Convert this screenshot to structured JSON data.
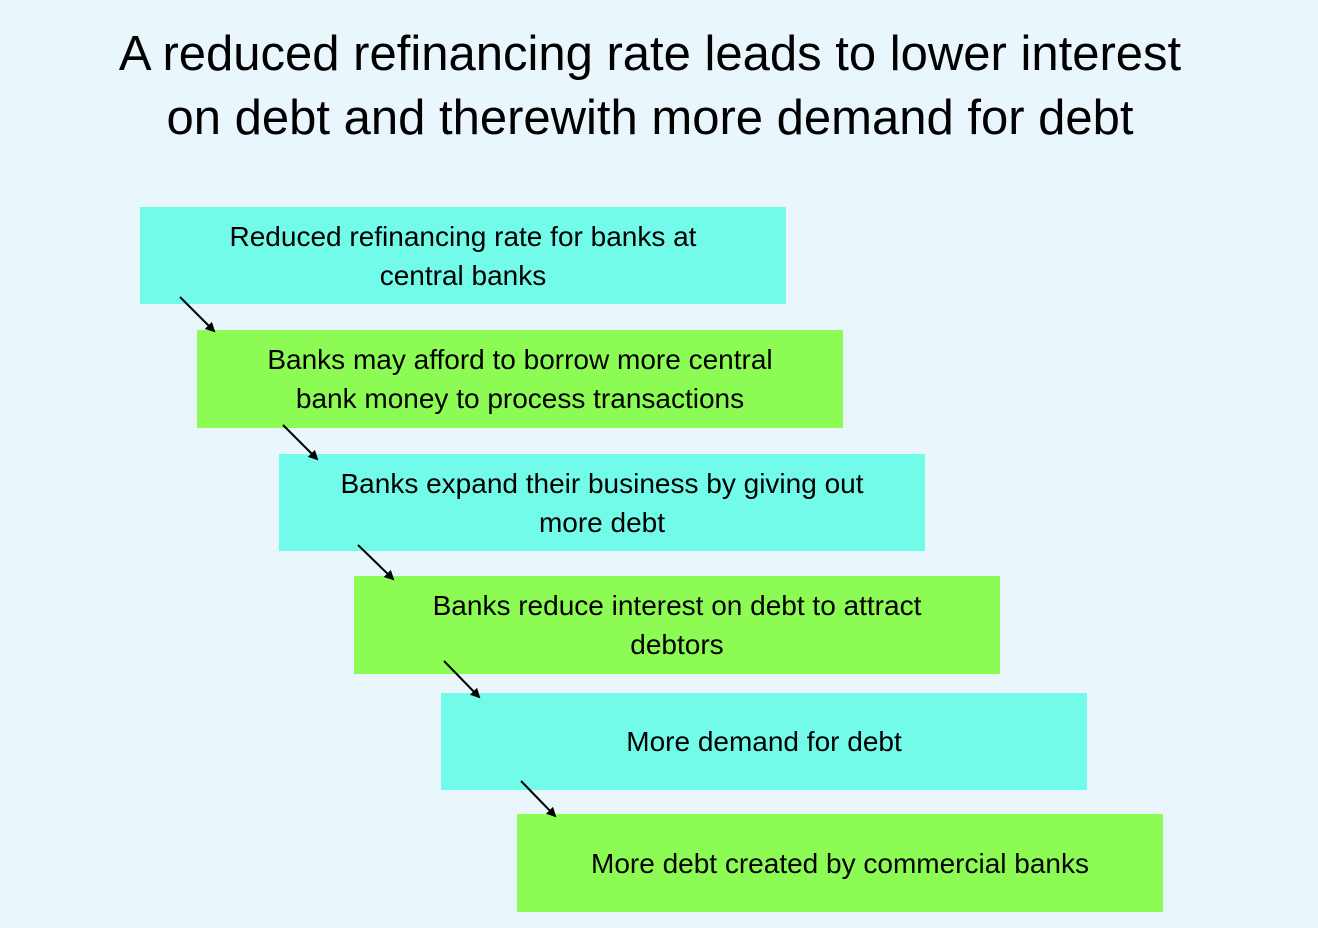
{
  "title": "A reduced refinancing rate leads to lower interest\non debt and therewith more demand for debt",
  "colors": {
    "background": "#e9f6fc",
    "cyan_box": "#72fbe9",
    "green_box": "#8cfb54",
    "arrow": "#000000"
  },
  "steps": [
    {
      "text": "Reduced refinancing rate for banks at\ncentral banks"
    },
    {
      "text": "Banks may afford to borrow more central\nbank money to process transactions"
    },
    {
      "text": "Banks expand their business by giving out\nmore debt"
    },
    {
      "text": "Banks reduce interest on debt to attract\ndebtors"
    },
    {
      "text": "More demand for debt"
    },
    {
      "text": "More debt created by commercial banks"
    }
  ]
}
